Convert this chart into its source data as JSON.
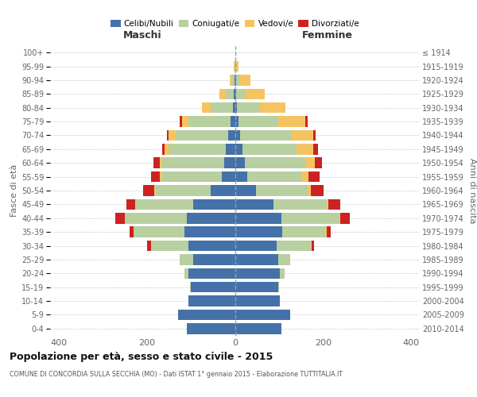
{
  "age_groups": [
    "0-4",
    "5-9",
    "10-14",
    "15-19",
    "20-24",
    "25-29",
    "30-34",
    "35-39",
    "40-44",
    "45-49",
    "50-54",
    "55-59",
    "60-64",
    "65-69",
    "70-74",
    "75-79",
    "80-84",
    "85-89",
    "90-94",
    "95-99",
    "100+"
  ],
  "birth_years": [
    "2010-2014",
    "2005-2009",
    "2000-2004",
    "1995-1999",
    "1990-1994",
    "1985-1989",
    "1980-1984",
    "1975-1979",
    "1970-1974",
    "1965-1969",
    "1960-1964",
    "1955-1959",
    "1950-1954",
    "1945-1949",
    "1940-1944",
    "1935-1939",
    "1930-1934",
    "1925-1929",
    "1920-1924",
    "1915-1919",
    "≤ 1914"
  ],
  "males": {
    "celibi": [
      110,
      130,
      105,
      100,
      105,
      95,
      105,
      115,
      110,
      95,
      55,
      30,
      25,
      20,
      15,
      10,
      5,
      3,
      1,
      0,
      0
    ],
    "coniugati": [
      0,
      0,
      0,
      2,
      10,
      30,
      85,
      115,
      140,
      130,
      125,
      135,
      140,
      130,
      120,
      95,
      50,
      18,
      5,
      1,
      0
    ],
    "vedovi": [
      0,
      0,
      0,
      0,
      0,
      0,
      0,
      0,
      1,
      2,
      3,
      5,
      5,
      10,
      15,
      15,
      20,
      15,
      6,
      1,
      0
    ],
    "divorziati": [
      0,
      0,
      0,
      0,
      0,
      0,
      10,
      10,
      20,
      20,
      25,
      20,
      15,
      5,
      5,
      5,
      0,
      0,
      0,
      0,
      0
    ]
  },
  "females": {
    "nubili": [
      105,
      125,
      102,
      98,
      102,
      98,
      95,
      108,
      105,
      88,
      48,
      28,
      22,
      18,
      12,
      8,
      5,
      3,
      2,
      0,
      0
    ],
    "coniugate": [
      0,
      0,
      0,
      2,
      10,
      28,
      78,
      98,
      132,
      120,
      118,
      125,
      138,
      122,
      118,
      90,
      52,
      22,
      8,
      3,
      0
    ],
    "vedove": [
      0,
      0,
      0,
      0,
      0,
      0,
      1,
      2,
      2,
      4,
      7,
      14,
      22,
      38,
      48,
      62,
      58,
      42,
      25,
      5,
      0
    ],
    "divorziate": [
      0,
      0,
      0,
      0,
      0,
      0,
      5,
      10,
      22,
      28,
      28,
      25,
      15,
      10,
      5,
      5,
      0,
      0,
      0,
      0,
      0
    ]
  },
  "colors": {
    "celibi": "#4472a8",
    "coniugati": "#b8cfa0",
    "vedovi": "#f5c462",
    "divorziati": "#cc2222"
  },
  "xlim": 420,
  "xticks": [
    -400,
    -200,
    0,
    200,
    400
  ],
  "title": "Popolazione per età, sesso e stato civile - 2015",
  "subtitle": "COMUNE DI CONCORDIA SULLA SECCHIA (MO) - Dati ISTAT 1° gennaio 2015 - Elaborazione TUTTITALIA.IT",
  "ylabel_left": "Fasce di età",
  "ylabel_right": "Anni di nascita",
  "xlabel_left": "Maschi",
  "xlabel_right": "Femmine",
  "legend_labels": [
    "Celibi/Nubili",
    "Coniugati/e",
    "Vedovi/e",
    "Divorziati/e"
  ],
  "background_color": "#ffffff",
  "bar_height": 0.78,
  "grid_color": "#cccccc",
  "center_line_color": "#9999bb",
  "tick_label_color": "#666666",
  "title_color": "#111111",
  "subtitle_color": "#555555",
  "header_color": "#333333"
}
